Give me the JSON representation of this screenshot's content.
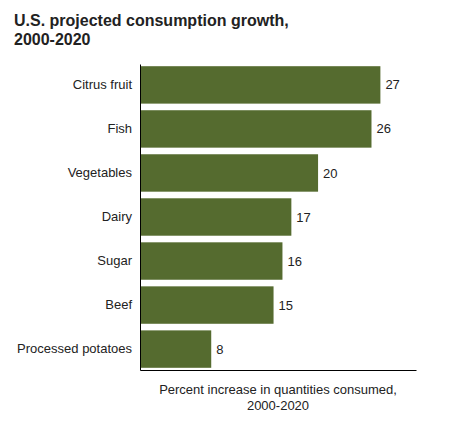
{
  "chart_data": {
    "type": "bar",
    "orientation": "horizontal",
    "title": "U.S. projected consumption growth,\n2000-2020",
    "categories": [
      "Citrus fruit",
      "Fish",
      "Vegetables",
      "Dairy",
      "Sugar",
      "Beef",
      "Processed potatoes"
    ],
    "values": [
      27,
      26,
      20,
      17,
      16,
      15,
      8
    ],
    "color": "#556B2F",
    "xlabel": "Percent increase in quantities consumed,\n2000-2020",
    "xlim": [
      0,
      31
    ],
    "xticks": [],
    "data_labels": true,
    "grid": false,
    "tick_labels": "y"
  }
}
